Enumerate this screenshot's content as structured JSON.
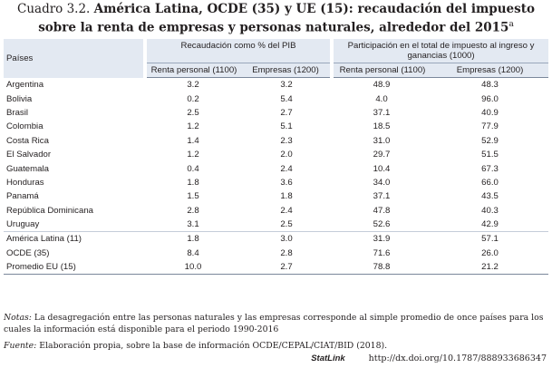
{
  "header": {
    "label": "Cuadro 3.2.",
    "title": "América Latina, OCDE (35) y UE (15): recaudación del impuesto sobre la renta de empresas y personas naturales, alrededor del 2015",
    "superscript": "a"
  },
  "table": {
    "country_header": "Países",
    "group_headers": [
      "Recaudación como % del PIB",
      "Participación en el total de impuesto al ingreso y ganancias (1000)"
    ],
    "sub_headers": [
      "Renta personal (1100)",
      "Empresas (1200)",
      "Renta personal (1100)",
      "Empresas (1200)"
    ],
    "rows": [
      [
        "Argentina",
        "3.2",
        "3.2",
        "48.9",
        "48.3"
      ],
      [
        "Bolivia",
        "0.2",
        "5.4",
        "4.0",
        "96.0"
      ],
      [
        "Brasil",
        "2.5",
        "2.7",
        "37.1",
        "40.9"
      ],
      [
        "Colombia",
        "1.2",
        "5.1",
        "18.5",
        "77.9"
      ],
      [
        "Costa Rica",
        "1.4",
        "2.3",
        "31.0",
        "52.9"
      ],
      [
        "El Salvador",
        "1.2",
        "2.0",
        "29.7",
        "51.5"
      ],
      [
        "Guatemala",
        "0.4",
        "2.4",
        "10.4",
        "67.3"
      ],
      [
        "Honduras",
        "1.8",
        "3.6",
        "34.0",
        "66.0"
      ],
      [
        "Panamá",
        "1.5",
        "1.8",
        "37.1",
        "43.5"
      ],
      [
        "República Dominicana",
        "2.8",
        "2.4",
        "47.8",
        "40.3"
      ],
      [
        "Uruguay",
        "3.1",
        "2.5",
        "52.6",
        "42.9"
      ],
      [
        "América Latina (11)",
        "1.8",
        "3.0",
        "31.9",
        "57.1"
      ],
      [
        "OCDE (35)",
        "8.4",
        "2.8",
        "71.6",
        "26.0"
      ],
      [
        "Promedio EU (15)",
        "10.0",
        "2.7",
        "78.8",
        "21.2"
      ]
    ]
  },
  "notes": {
    "label": "Notas:",
    "text": "La desagregación entre las personas naturales y las empresas corresponde al simple promedio de once países para los cuales la información está disponible para el periodo 1990-2016"
  },
  "source": {
    "label": "Fuente:",
    "text": "Elaboración propia, sobre la base de información OCDE/CEPAL/CIAT/BID (2018)."
  },
  "statlink": {
    "label": "StatLink",
    "url": "http://dx.doi.org/10.1787/888933686347"
  }
}
